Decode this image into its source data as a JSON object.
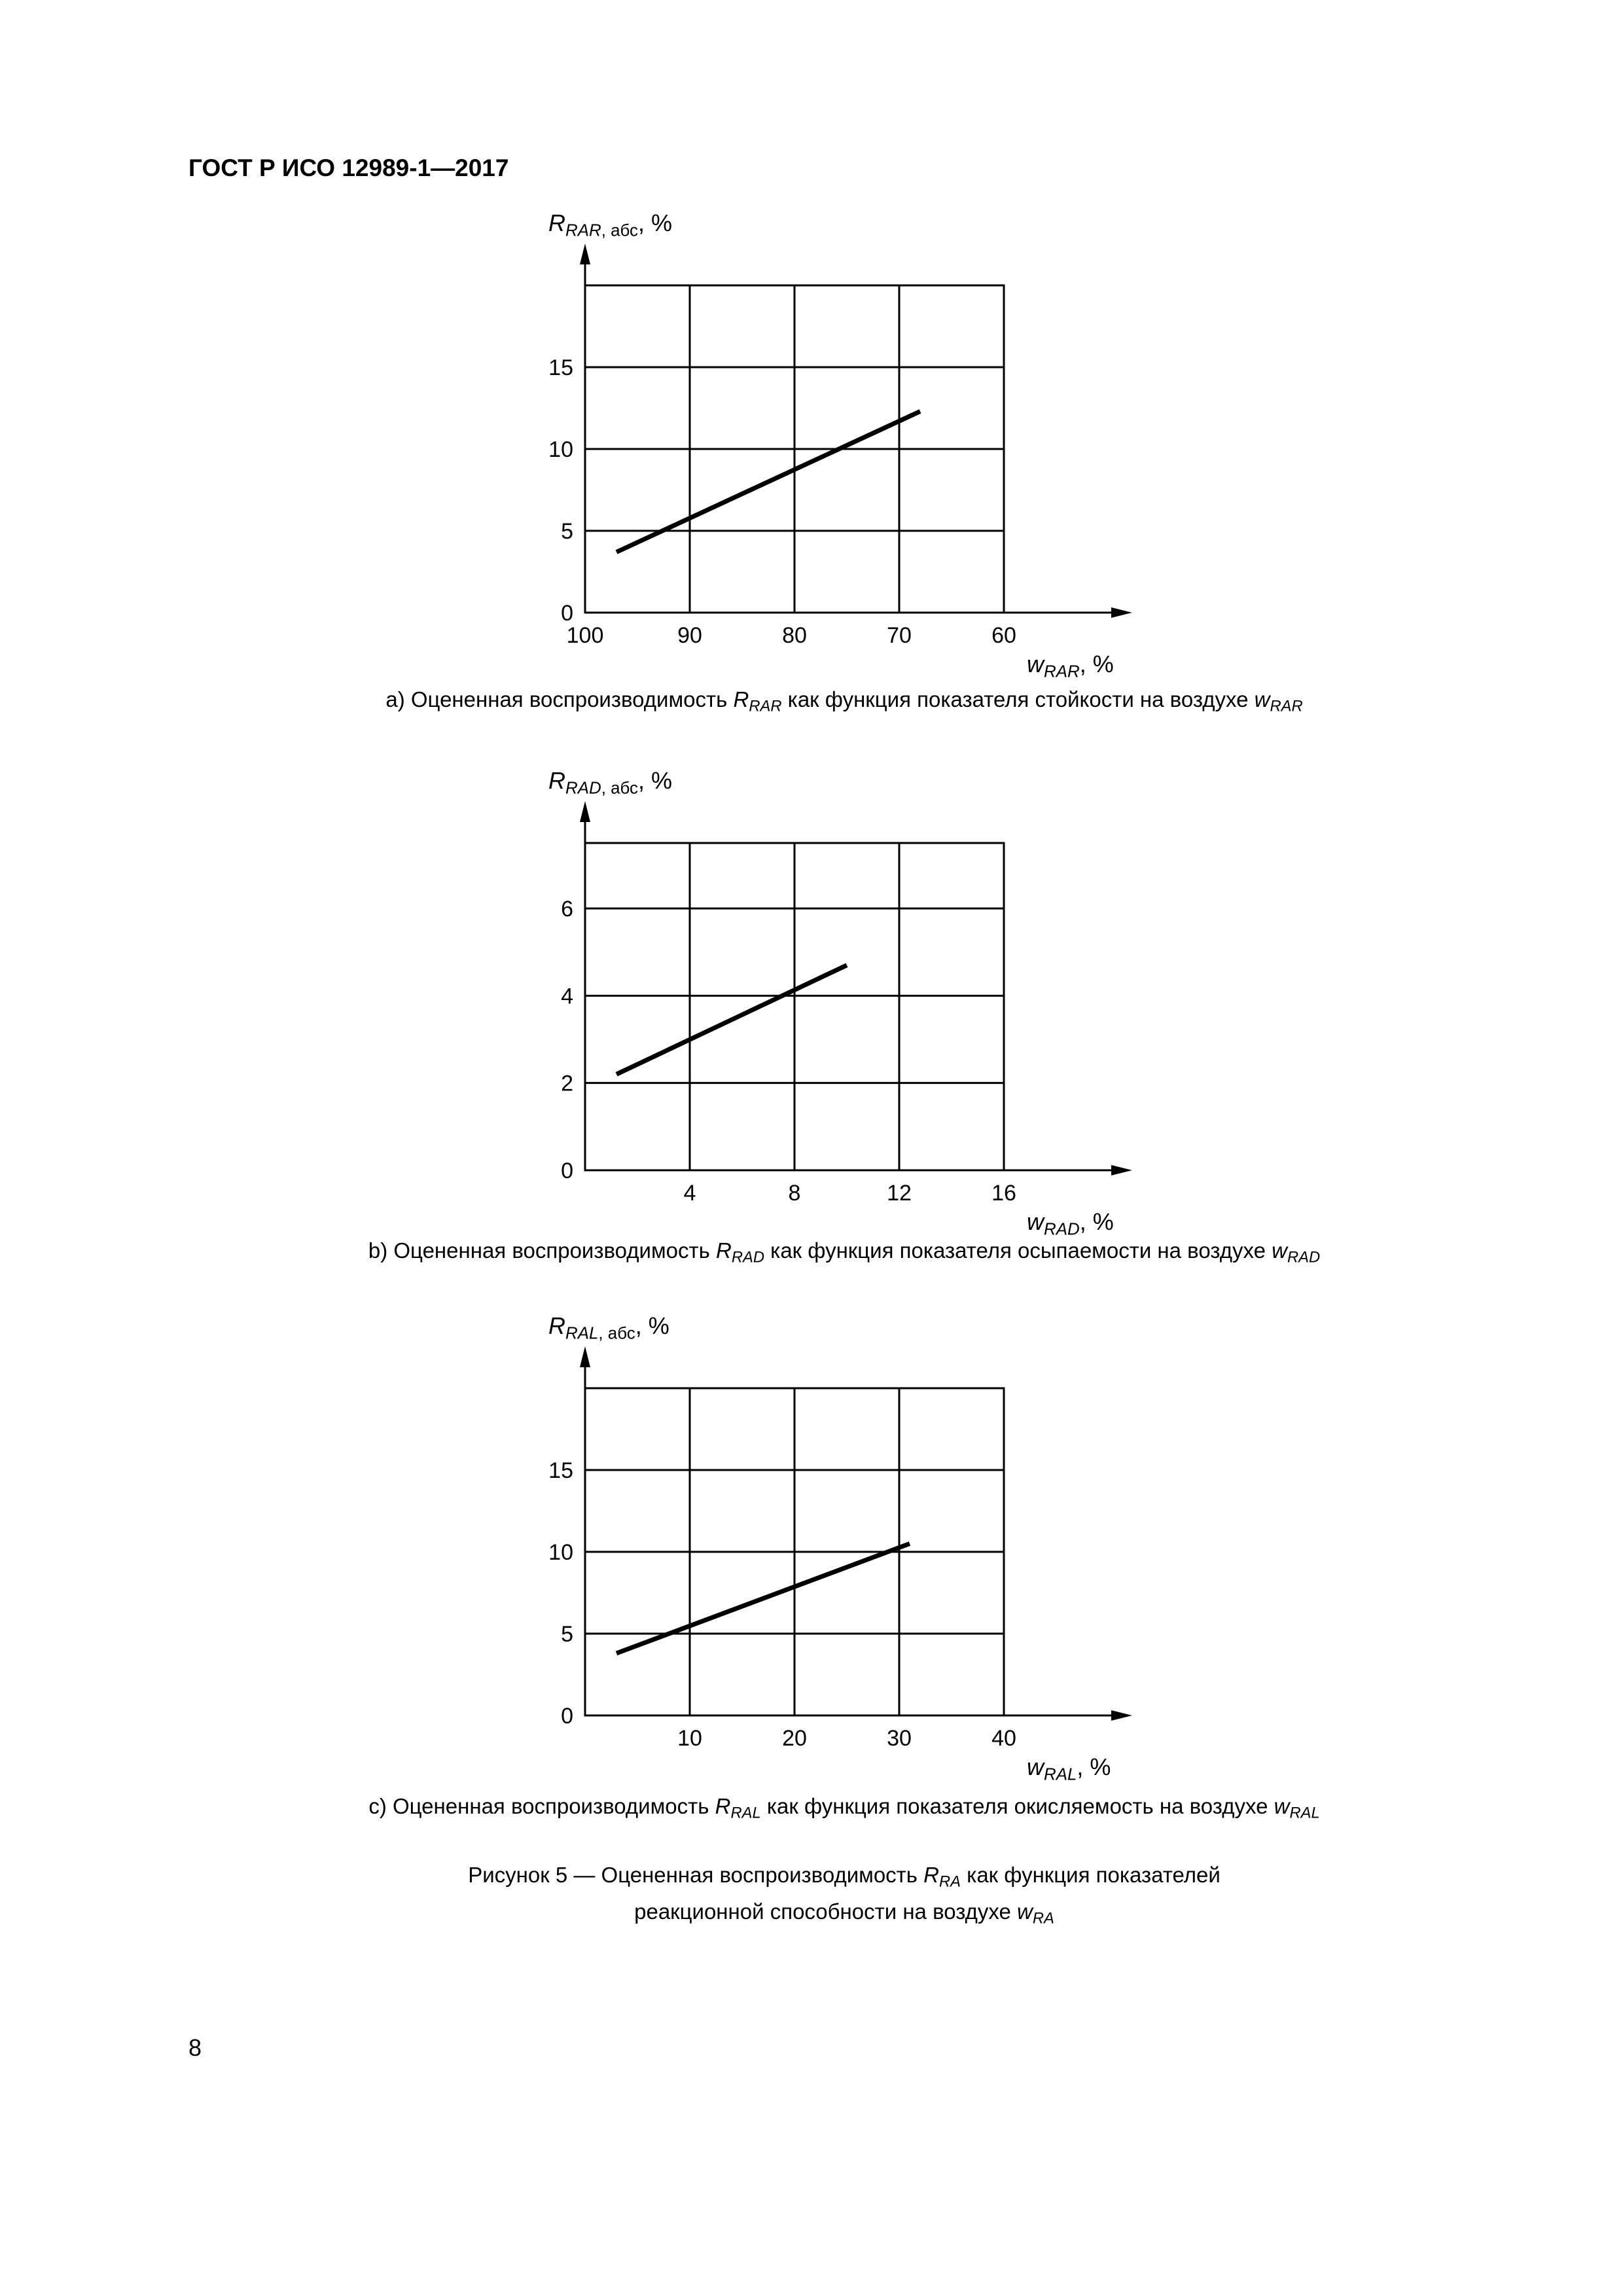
{
  "header": {
    "title": "ГОСТ Р ИСО 12989-1—2017"
  },
  "page_number": "8",
  "colors": {
    "ink": "#000000",
    "paper": "#ffffff"
  },
  "figure_caption": {
    "line1": {
      "text1": "Рисунок 5 — Оцененная воспроизводимость ",
      "var": "R",
      "sub": "RA",
      "text2": " как функция показателей"
    },
    "line2": {
      "text1": "реакционной способности на воздухе ",
      "var": "w",
      "sub": "RA"
    }
  },
  "chart_data": [
    {
      "type": "line",
      "ylabel": {
        "var": "R",
        "sub_var": "RAR",
        "sub_text": ", абс",
        "unit": ", %"
      },
      "xlabel": {
        "var": "w",
        "sub": "RAR",
        "unit": ", %"
      },
      "xlim": [
        100,
        60
      ],
      "ylim": [
        0,
        20
      ],
      "xticks": [
        {
          "v": 100,
          "label": "100"
        },
        {
          "v": 90,
          "label": "90"
        },
        {
          "v": 80,
          "label": "80"
        },
        {
          "v": 70,
          "label": "70"
        },
        {
          "v": 60,
          "label": "60"
        }
      ],
      "yticks": [
        {
          "v": 0,
          "label": "0"
        },
        {
          "v": 5,
          "label": "5"
        },
        {
          "v": 10,
          "label": "10"
        },
        {
          "v": 15,
          "label": "15"
        }
      ],
      "grid_x": [
        90,
        80,
        70
      ],
      "grid_y": [
        5,
        10,
        15
      ],
      "grid": true,
      "line": {
        "x": [
          97,
          68
        ],
        "y": [
          3.7,
          12.3
        ]
      },
      "caption": {
        "text1": "a) Оцененная воспроизводимость ",
        "var1": "R",
        "sub1": "RAR",
        "text2": " как функция показателя стойкости на воздухе ",
        "var2": "w",
        "sub2": "RAR"
      }
    },
    {
      "type": "line",
      "ylabel": {
        "var": "R",
        "sub_var": "RAD",
        "sub_text": ", абс",
        "unit": ", %"
      },
      "xlabel": {
        "var": "w",
        "sub": "RAD",
        "unit": ", %"
      },
      "xlim": [
        0,
        16
      ],
      "ylim": [
        0,
        7.5
      ],
      "xticks": [
        {
          "v": 4,
          "label": "4"
        },
        {
          "v": 8,
          "label": "8"
        },
        {
          "v": 12,
          "label": "12"
        },
        {
          "v": 16,
          "label": "16"
        }
      ],
      "yticks": [
        {
          "v": 0,
          "label": "0"
        },
        {
          "v": 2,
          "label": "2"
        },
        {
          "v": 4,
          "label": "4"
        },
        {
          "v": 6,
          "label": "6"
        }
      ],
      "grid_x": [
        4,
        8,
        12
      ],
      "grid_y": [
        2,
        4,
        6
      ],
      "grid": true,
      "line": {
        "x": [
          1.2,
          10
        ],
        "y": [
          2.2,
          4.7
        ]
      },
      "caption": {
        "text1": "b) Оцененная воспроизводимость ",
        "var1": "R",
        "sub1": "RAD",
        "text2": " как функция показателя осыпаемости на воздухе ",
        "var2": "w",
        "sub2": "RAD"
      }
    },
    {
      "type": "line",
      "ylabel": {
        "var": "R",
        "sub_var": "RAL",
        "sub_text": ", абс",
        "unit": ", %"
      },
      "xlabel": {
        "var": "w",
        "sub": "RAL",
        "unit": ", %"
      },
      "xlim": [
        0,
        40
      ],
      "ylim": [
        0,
        20
      ],
      "xticks": [
        {
          "v": 10,
          "label": "10"
        },
        {
          "v": 20,
          "label": "20"
        },
        {
          "v": 30,
          "label": "30"
        },
        {
          "v": 40,
          "label": "40"
        }
      ],
      "yticks": [
        {
          "v": 0,
          "label": "0"
        },
        {
          "v": 5,
          "label": "5"
        },
        {
          "v": 10,
          "label": "10"
        },
        {
          "v": 15,
          "label": "15"
        }
      ],
      "grid_x": [
        10,
        20,
        30
      ],
      "grid_y": [
        5,
        10,
        15
      ],
      "grid": true,
      "line": {
        "x": [
          3,
          31
        ],
        "y": [
          3.8,
          10.5
        ]
      },
      "caption": {
        "text1": "c) Оцененная воспроизводимость ",
        "var1": "R",
        "sub1": "RAL",
        "text2": " как функция показателя окисляемость на воздухе ",
        "var2": "w",
        "sub2": "RAL"
      }
    }
  ]
}
